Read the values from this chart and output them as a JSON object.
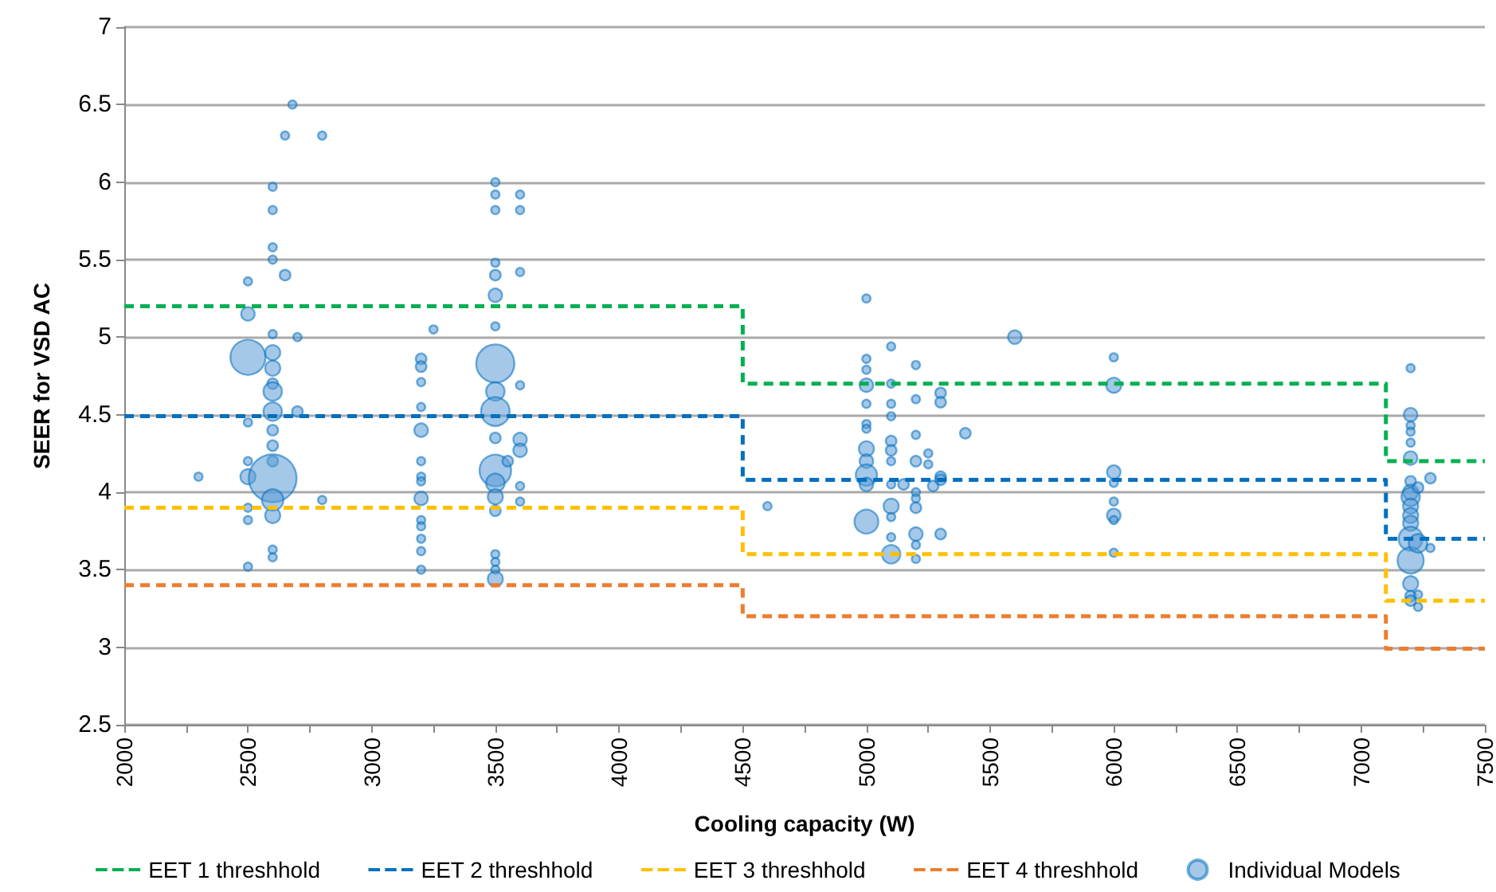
{
  "chart_data": {
    "type": "bubble",
    "xlabel": "Cooling capacity (W)",
    "ylabel": "SEER for VSD AC",
    "xlim": [
      2000,
      7500
    ],
    "xticks": [
      2000,
      {
        "value": 2250,
        "label": null
      },
      2500,
      {
        "value": 2750,
        "label": null
      },
      3000,
      {
        "value": 3250,
        "label": null
      },
      3500,
      {
        "value": 3750,
        "label": null
      },
      4000,
      {
        "value": 4250,
        "label": null
      },
      4500,
      {
        "value": 4750,
        "label": null
      },
      5000,
      {
        "value": 5250,
        "label": null
      },
      5500,
      {
        "value": 5750,
        "label": null
      },
      6000,
      {
        "value": 6250,
        "label": null
      },
      6500,
      {
        "value": 6750,
        "label": null
      },
      7000,
      {
        "value": 7250,
        "label": null
      },
      7500
    ],
    "ylim": [
      2.5,
      7
    ],
    "yticks": [
      2.5,
      3,
      3.5,
      4,
      4.5,
      5,
      5.5,
      6,
      6.5,
      7
    ],
    "grid": "y",
    "legend": "bottom",
    "series": [
      {
        "name": "EET 1 threshhold",
        "type": "step",
        "color": "#00b050",
        "line_style": "dashed",
        "marker": "none",
        "x": [
          2000,
          4500,
          7100,
          7500
        ],
        "values": [
          5.2,
          4.7,
          4.2,
          4.2
        ]
      },
      {
        "name": "EET 2 threshhold",
        "type": "step",
        "color": "#0070c0",
        "line_style": "dashed",
        "marker": "none",
        "x": [
          2000,
          4500,
          7100,
          7500
        ],
        "values": [
          4.49,
          4.08,
          3.7,
          3.7
        ]
      },
      {
        "name": "EET 3 threshhold",
        "type": "step",
        "color": "#ffc000",
        "line_style": "dashed",
        "marker": "none",
        "x": [
          2000,
          4500,
          7100,
          7500
        ],
        "values": [
          3.9,
          3.6,
          3.3,
          3.3
        ]
      },
      {
        "name": "EET 4 threshhold",
        "type": "step",
        "color": "#ed7d31",
        "line_style": "dashed",
        "marker": "none",
        "x": [
          2000,
          4500,
          7100,
          7500
        ],
        "values": [
          3.4,
          3.2,
          2.99,
          2.99
        ]
      },
      {
        "name": "Individual Models",
        "color": "#5b9bd5",
        "marker": "circle",
        "x": [
          2300,
          2500,
          2500,
          2500,
          2500,
          2500,
          2500,
          2500,
          2500,
          2500,
          2600,
          2600,
          2600,
          2600,
          2600,
          2600,
          2600,
          2600,
          2600,
          2600,
          2600,
          2600,
          2600,
          2600,
          2600,
          2600,
          2600,
          2600,
          2650,
          2680,
          2650,
          2700,
          2700,
          2800,
          2800,
          3250,
          3200,
          3200,
          3200,
          3200,
          3200,
          3200,
          3200,
          3200,
          3200,
          3200,
          3200,
          3200,
          3200,
          3200,
          3500,
          3500,
          3500,
          3500,
          3500,
          3500,
          3500,
          3500,
          3500,
          3500,
          3500,
          3500,
          3500,
          3500,
          3500,
          3500,
          3500,
          3500,
          3500,
          3600,
          3600,
          3600,
          3600,
          3600,
          3600,
          3600,
          3600,
          3550,
          4600,
          5000,
          5000,
          5000,
          5000,
          5000,
          5000,
          5000,
          5000,
          5000,
          5000,
          5000,
          5000,
          5100,
          5100,
          5100,
          5100,
          5100,
          5100,
          5100,
          5100,
          5100,
          5100,
          5100,
          5100,
          5150,
          5200,
          5200,
          5200,
          5200,
          5200,
          5200,
          5200,
          5200,
          5200,
          5200,
          5250,
          5250,
          5270,
          5300,
          5300,
          5300,
          5300,
          5300,
          5400,
          5600,
          6000,
          6000,
          6000,
          6000,
          6000,
          6000,
          6000,
          6000,
          7200,
          7200,
          7200,
          7200,
          7200,
          7200,
          7200,
          7200,
          7200,
          7200,
          7200,
          7200,
          7200,
          7200,
          7200,
          7200,
          7200,
          7230,
          7230,
          7230,
          7230,
          7280,
          7280
        ],
        "values": [
          4.1,
          5.36,
          5.15,
          4.87,
          4.45,
          4.2,
          4.1,
          3.9,
          3.82,
          3.52,
          5.97,
          5.82,
          5.58,
          5.5,
          5.02,
          4.9,
          4.8,
          4.7,
          4.65,
          4.52,
          4.4,
          4.3,
          4.2,
          4.09,
          3.95,
          3.85,
          3.63,
          3.58,
          6.3,
          6.5,
          5.4,
          5.0,
          4.52,
          6.3,
          3.95,
          5.05,
          4.86,
          4.81,
          4.71,
          4.55,
          4.4,
          4.2,
          4.1,
          4.07,
          3.96,
          3.82,
          3.78,
          3.7,
          3.62,
          3.5,
          6.0,
          5.92,
          5.82,
          5.48,
          5.4,
          5.27,
          5.07,
          4.83,
          4.65,
          4.52,
          4.35,
          4.14,
          4.06,
          3.97,
          3.88,
          3.6,
          3.55,
          3.5,
          3.44,
          5.92,
          5.82,
          5.42,
          4.69,
          4.34,
          4.27,
          4.04,
          3.94,
          4.2,
          3.91,
          5.25,
          4.86,
          4.79,
          4.69,
          4.57,
          4.44,
          4.41,
          4.28,
          4.2,
          4.11,
          4.05,
          3.81,
          4.94,
          4.7,
          4.57,
          4.49,
          4.33,
          4.27,
          4.2,
          4.05,
          3.91,
          3.84,
          3.71,
          3.6,
          4.05,
          4.82,
          4.6,
          4.37,
          4.2,
          4.0,
          3.96,
          3.9,
          3.73,
          3.66,
          3.57,
          4.25,
          4.18,
          4.04,
          4.64,
          4.58,
          4.1,
          4.08,
          3.73,
          4.38,
          5.0,
          4.87,
          4.69,
          4.13,
          4.06,
          3.94,
          3.85,
          3.82,
          3.61,
          4.8,
          4.5,
          4.43,
          4.39,
          4.32,
          4.22,
          4.07,
          4.0,
          3.97,
          3.91,
          3.85,
          3.8,
          3.7,
          3.56,
          3.41,
          3.33,
          3.3,
          4.03,
          3.67,
          3.34,
          3.26,
          4.09,
          3.64
        ],
        "sizes": [
          0.03,
          0.03,
          0.08,
          0.54,
          0.03,
          0.03,
          0.1,
          0.03,
          0.03,
          0.03,
          0.03,
          0.03,
          0.03,
          0.03,
          0.03,
          0.1,
          0.1,
          0.05,
          0.15,
          0.15,
          0.05,
          0.05,
          0.05,
          1,
          0.2,
          0.1,
          0.03,
          0.03,
          0.03,
          0.03,
          0.05,
          0.03,
          0.05,
          0.03,
          0.03,
          0.03,
          0.05,
          0.05,
          0.03,
          0.03,
          0.08,
          0.03,
          0.03,
          0.03,
          0.08,
          0.03,
          0.03,
          0.03,
          0.03,
          0.03,
          0.03,
          0.03,
          0.03,
          0.03,
          0.05,
          0.08,
          0.03,
          0.64,
          0.15,
          0.36,
          0.05,
          0.44,
          0.15,
          0.1,
          0.05,
          0.03,
          0.03,
          0.03,
          0.1,
          0.03,
          0.03,
          0.03,
          0.03,
          0.08,
          0.08,
          0.03,
          0.03,
          0.05,
          0.03,
          0.03,
          0.03,
          0.03,
          0.08,
          0.03,
          0.03,
          0.03,
          0.1,
          0.08,
          0.2,
          0.08,
          0.25,
          0.03,
          0.03,
          0.03,
          0.03,
          0.05,
          0.05,
          0.03,
          0.03,
          0.1,
          0.03,
          0.03,
          0.15,
          0.05,
          0.03,
          0.03,
          0.03,
          0.05,
          0.03,
          0.03,
          0.05,
          0.08,
          0.03,
          0.03,
          0.03,
          0.03,
          0.05,
          0.05,
          0.05,
          0.05,
          0.05,
          0.05,
          0.05,
          0.08,
          0.03,
          0.1,
          0.08,
          0.03,
          0.03,
          0.08,
          0.03,
          0.03,
          0.03,
          0.08,
          0.03,
          0.03,
          0.03,
          0.08,
          0.05,
          0.1,
          0.15,
          0.1,
          0.1,
          0.1,
          0.25,
          0.3,
          0.1,
          0.05,
          0.05,
          0.05,
          0.15,
          0.03,
          0.03,
          0.05,
          0.03
        ]
      }
    ]
  }
}
